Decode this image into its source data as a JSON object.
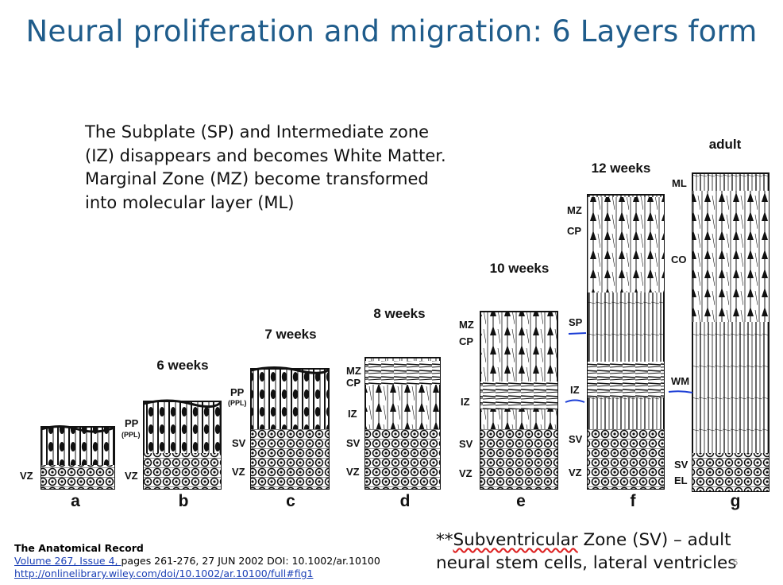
{
  "slide": {
    "title": "Neural proliferation and migration: 6 Layers form",
    "body_lines": [
      "The Subplate (SP) and Intermediate zone",
      "(IZ) disappears and becomes White Matter.",
      "Marginal Zone (MZ) become transformed",
      "into molecular layer (ML)"
    ],
    "source": {
      "journal": "The Anatomical Record",
      "volume_link": "Volume 267, Issue 4, ",
      "citation_rest": "pages 261-276, 27 JUN 2002 DOI: 10.1002/ar.10100",
      "url": "http://onlinelibrary.wiley.com/doi/10.1002/ar.10100/full#fig1"
    },
    "note_line1_prefix": "**",
    "note_line1_word": "Subventricular",
    "note_line1_rest": " Zone (SV) – adult",
    "note_line2": "neural stem cells, lateral ventricles",
    "page_number": "5"
  },
  "figure": {
    "panels": [
      {
        "letter": "a",
        "age": "",
        "labels": [
          "VZ"
        ]
      },
      {
        "letter": "b",
        "age": "6 weeks",
        "labels": [
          "PP",
          "(PPL)",
          "VZ"
        ]
      },
      {
        "letter": "c",
        "age": "7 weeks",
        "labels": [
          "PP",
          "(PPL)",
          "SV",
          "VZ"
        ]
      },
      {
        "letter": "d",
        "age": "8 weeks",
        "labels": [
          "MZ",
          "CP",
          "IZ",
          "SV",
          "VZ"
        ]
      },
      {
        "letter": "e",
        "age": "10 weeks",
        "labels": [
          "MZ",
          "CP",
          "IZ",
          "SV",
          "VZ"
        ]
      },
      {
        "letter": "f",
        "age": "12 weeks",
        "labels": [
          "MZ",
          "CP",
          "SP",
          "IZ",
          "SV",
          "VZ"
        ]
      },
      {
        "letter": "g",
        "age": "adult",
        "labels": [
          "ML",
          "CO",
          "WM",
          "SV",
          "EL"
        ]
      }
    ],
    "annotation_color": "#1d3fd6"
  }
}
